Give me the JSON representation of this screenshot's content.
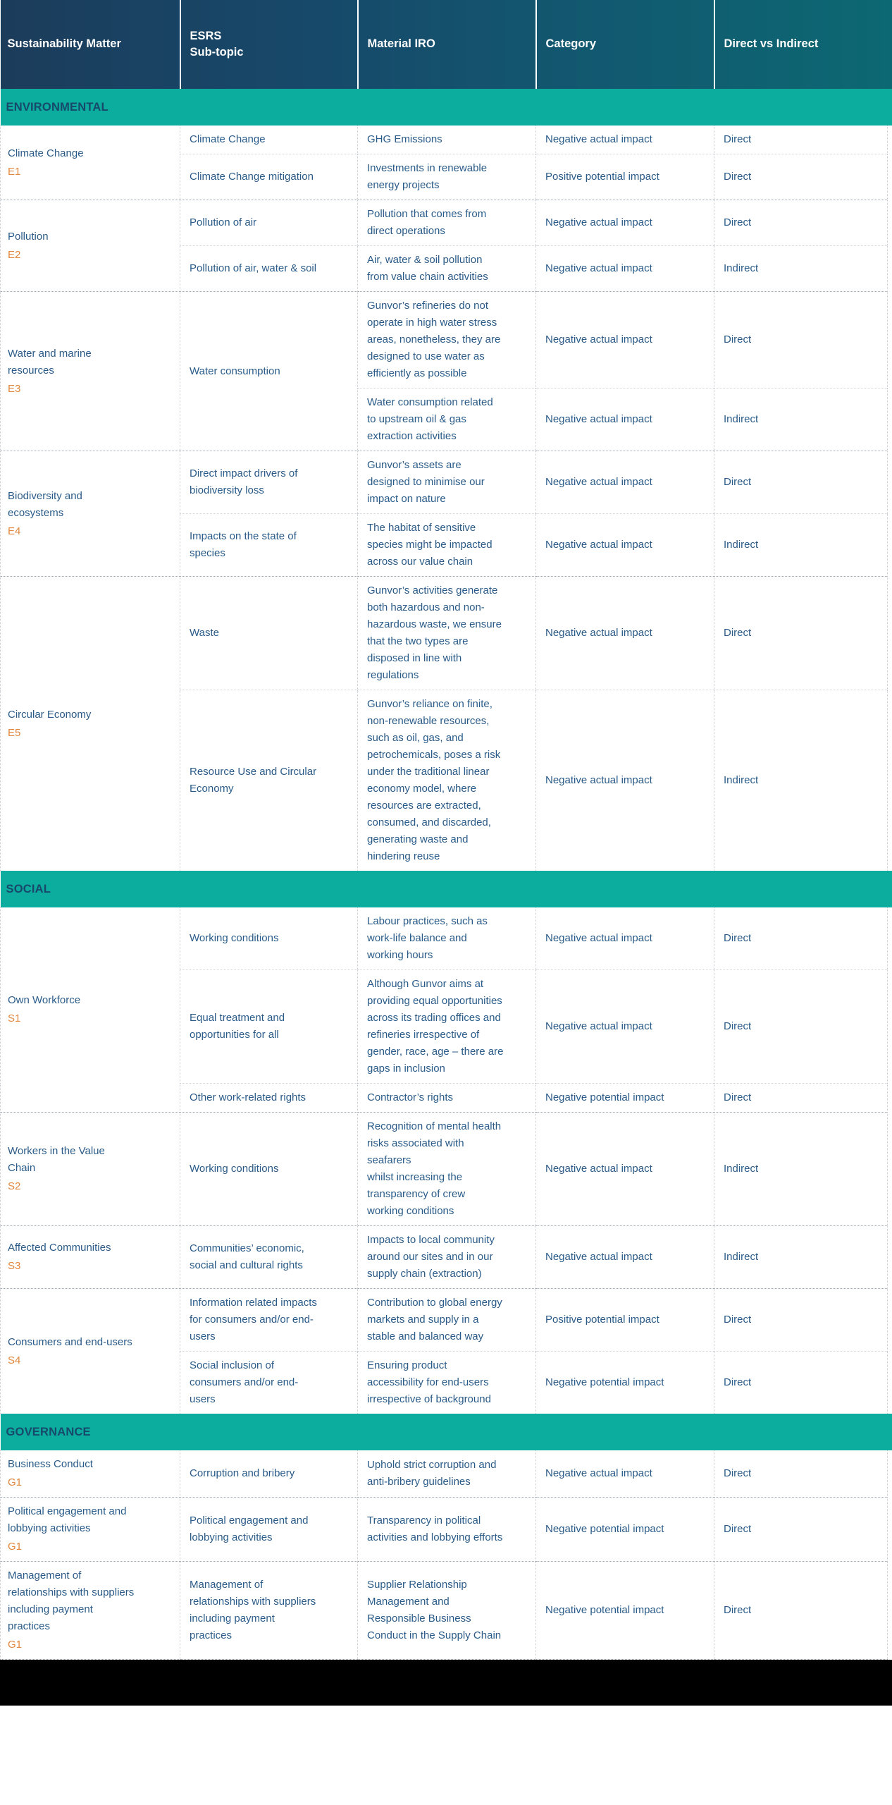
{
  "colors": {
    "header_gradient_start": "#1C3C5B",
    "header_gradient_end": "#0C6872",
    "section_band": "#0CAC9E",
    "band_text": "#17496B",
    "body_text": "#2A5B88",
    "code_orange": "#E1873D",
    "border_dotted": "#c9cdd2",
    "bottom_strip": "#000000"
  },
  "table": {
    "columns": [
      "Sustainability Matter",
      "ESRS\nSub-topic",
      "Material IRO",
      "Category",
      "Direct vs Indirect"
    ],
    "sections": [
      {
        "band": "ENVIRONMENTAL",
        "groups": [
          {
            "matter": "Climate Change",
            "code": "E1",
            "rows": [
              {
                "subtopic": "Climate Change",
                "iro": "GHG Emissions",
                "category": "Negative actual impact",
                "direction": "Direct"
              },
              {
                "subtopic": "Climate Change mitigation",
                "iro": "Investments in renewable energy projects",
                "category": "Positive potential impact",
                "direction": "Direct"
              }
            ]
          },
          {
            "matter": "Pollution",
            "code": "E2",
            "rows": [
              {
                "subtopic": "Pollution of air",
                "iro": "Pollution that comes from direct operations",
                "category": "Negative actual impact",
                "direction": "Direct"
              },
              {
                "subtopic": "Pollution of air, water & soil",
                "iro": "Air, water & soil pollution from value chain activities",
                "category": "Negative actual impact",
                "direction": "Indirect"
              }
            ]
          },
          {
            "matter": "Water and marine resources",
            "code": "E3",
            "rows": [
              {
                "subtopic": "Water consumption",
                "subtopic_span": 2,
                "iro": "Gunvor’s refineries do not operate in high water stress areas, nonetheless, they are designed to use water as efficiently as possible",
                "category": "Negative actual impact",
                "direction": "Direct"
              },
              {
                "subtopic": null,
                "iro": "Water consumption related to upstream oil & gas extraction activities",
                "category": "Negative actual impact",
                "direction": "Indirect"
              }
            ]
          },
          {
            "matter": "Biodiversity and ecosystems",
            "code": "E4",
            "rows": [
              {
                "subtopic": "Direct impact drivers of biodiversity loss",
                "iro": "Gunvor’s assets are designed to minimise our impact on nature",
                "category": "Negative actual impact",
                "direction": "Direct"
              },
              {
                "subtopic": "Impacts on the state of species",
                "iro": "The habitat of sensitive species might be impacted across our value chain",
                "category": "Negative actual impact",
                "direction": "Indirect"
              }
            ]
          },
          {
            "matter": "Circular Economy",
            "code": "E5",
            "rows": [
              {
                "subtopic": "Waste",
                "iro": "Gunvor’s activities generate both hazardous and non-hazardous waste, we ensure that the two types are disposed in line with regulations",
                "category": "Negative actual impact",
                "direction": "Direct"
              },
              {
                "subtopic": "Resource Use and Circular Economy",
                "iro": "Gunvor’s reliance on finite, non-renewable resources, such as oil, gas, and petrochemicals, poses a risk under the traditional linear economy model, where resources are extracted, consumed, and discarded, generating waste and hindering reuse",
                "category": "Negative actual impact",
                "direction": "Indirect"
              }
            ]
          }
        ]
      },
      {
        "band": "SOCIAL",
        "groups": [
          {
            "matter": "Own Workforce",
            "code": "S1",
            "rows": [
              {
                "subtopic": "Working conditions",
                "iro": "Labour practices, such as work-life balance and working hours",
                "category": "Negative actual impact",
                "direction": "Direct"
              },
              {
                "subtopic": "Equal treatment and opportunities for all",
                "iro": "Although Gunvor aims at providing equal opportunities across its trading offices and refineries irrespective of gender, race, age – there are gaps in inclusion",
                "category": "Negative actual impact",
                "direction": "Direct"
              },
              {
                "subtopic": "Other work-related rights",
                "iro": "Contractor’s rights",
                "category": "Negative potential impact",
                "direction": "Direct"
              }
            ]
          },
          {
            "matter": "Workers in the Value Chain",
            "code": "S2",
            "rows": [
              {
                "subtopic": "Working conditions",
                "iro": "Recognition of mental health risks associated with seafarers\nwhilst increasing the transparency of crew working conditions",
                "category": "Negative actual impact",
                "direction": "Indirect"
              }
            ]
          },
          {
            "matter": "Affected Communities",
            "code": "S3",
            "rows": [
              {
                "subtopic": "Communities’ economic, social and cultural rights",
                "iro": "Impacts to local community around our sites and in our supply chain (extraction)",
                "category": "Negative actual impact",
                "direction": "Indirect"
              }
            ]
          },
          {
            "matter": "Consumers and end-users",
            "code": "S4",
            "rows": [
              {
                "subtopic": "Information related impacts for consumers and/or end-users",
                "iro": "Contribution to global energy markets and supply in a stable and balanced way",
                "category": "Positive potential impact",
                "direction": "Direct"
              },
              {
                "subtopic": "Social inclusion of consumers and/or end-users",
                "iro": "Ensuring product accessibility for end-users irrespective of background",
                "category": "Negative potential impact",
                "direction": "Direct"
              }
            ]
          }
        ]
      },
      {
        "band": "GOVERNANCE",
        "groups": [
          {
            "matter": "Business Conduct",
            "code": "G1",
            "rows": [
              {
                "subtopic": "Corruption and bribery",
                "iro": "Uphold strict corruption and anti-bribery guidelines",
                "category": "Negative actual impact",
                "direction": "Direct"
              }
            ]
          },
          {
            "matter": "Political engagement and lobbying activities",
            "code": "G1",
            "rows": [
              {
                "subtopic": "Political engagement and lobbying activities",
                "iro": "Transparency in political activities and lobbying efforts",
                "category": "Negative potential impact",
                "direction": "Direct"
              }
            ]
          },
          {
            "matter": "Management of relationships with suppliers including payment practices",
            "code": "G1",
            "rows": [
              {
                "subtopic": "Management of relationships with suppliers including payment practices",
                "iro": "Supplier Relationship Management and Responsible Business Conduct in the Supply Chain",
                "category": "Negative potential impact",
                "direction": "Direct"
              }
            ]
          }
        ]
      }
    ]
  }
}
